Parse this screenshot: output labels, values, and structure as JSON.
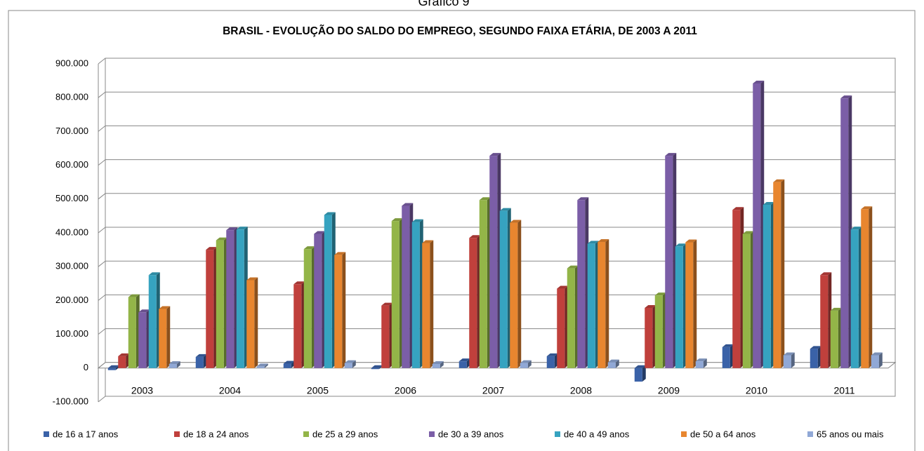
{
  "caption": "Gráfico 9",
  "chart_data": {
    "type": "bar3d",
    "title": "BRASIL - EVOLUÇÃO DO SALDO DO EMPREGO, SEGUNDO FAIXA ETÁRIA, DE 2003  A 2011",
    "categories": [
      "2003",
      "2004",
      "2005",
      "2006",
      "2007",
      "2008",
      "2009",
      "2010",
      "2011"
    ],
    "series": [
      {
        "name": "de 16 a 17 anos",
        "color": "#3a62a8",
        "values": [
          -6000,
          33000,
          13000,
          -3000,
          20000,
          35000,
          -40000,
          62000,
          57000
        ]
      },
      {
        "name": "de 18 a 24 anos",
        "color": "#c0403c",
        "values": [
          35000,
          350000,
          248000,
          185000,
          385000,
          235000,
          178000,
          468000,
          275000
        ]
      },
      {
        "name": "de 25 a 29 anos",
        "color": "#93b548",
        "values": [
          210000,
          378000,
          352000,
          435000,
          497000,
          295000,
          215000,
          397000,
          170000
        ]
      },
      {
        "name": "de 30 a 39 anos",
        "color": "#7b5ea7",
        "values": [
          165000,
          408000,
          397000,
          480000,
          628000,
          497000,
          628000,
          842000,
          798000
        ]
      },
      {
        "name": "de 40 a 49 anos",
        "color": "#36a3c0",
        "values": [
          275000,
          410000,
          453000,
          432000,
          465000,
          368000,
          360000,
          483000,
          410000
        ]
      },
      {
        "name": "de 50 a 64 anos",
        "color": "#e8862f",
        "values": [
          175000,
          260000,
          335000,
          370000,
          430000,
          373000,
          372000,
          550000,
          470000
        ]
      },
      {
        "name": "65 anos ou mais",
        "color": "#90a8d6",
        "values": [
          12000,
          5000,
          15000,
          12000,
          15000,
          17000,
          20000,
          38000,
          38000
        ]
      }
    ],
    "ylim": [
      -100000,
      900000
    ],
    "yticks": [
      {
        "value": -100000,
        "label": "-100.000"
      },
      0,
      {
        "value": 100000,
        "label": "100.000"
      },
      {
        "value": 200000,
        "label": "200.000"
      },
      {
        "value": 300000,
        "label": "300.000"
      },
      {
        "value": 400000,
        "label": "400.000"
      },
      {
        "value": 500000,
        "label": "500.000"
      },
      {
        "value": 600000,
        "label": "600.000"
      },
      {
        "value": 700000,
        "label": "700.000"
      },
      {
        "value": 800000,
        "label": "800.000"
      },
      {
        "value": 900000,
        "label": "900.000"
      }
    ],
    "grid": true,
    "legend": "bottom"
  }
}
